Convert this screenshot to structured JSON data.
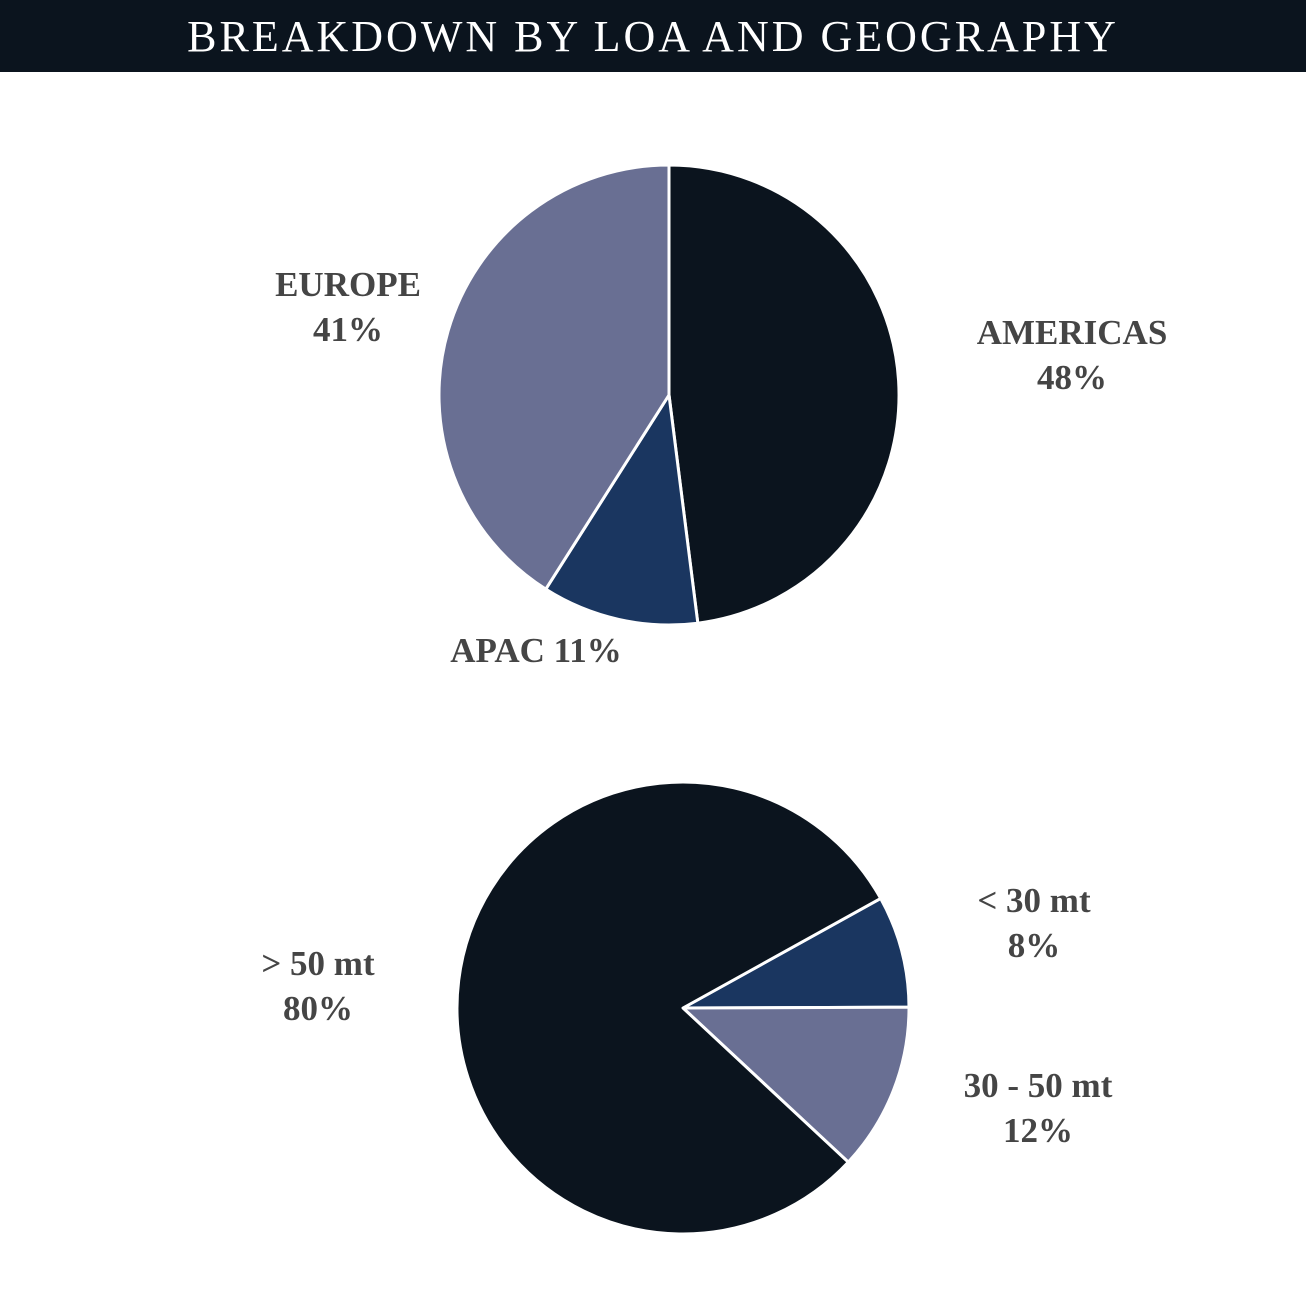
{
  "header": {
    "title": "BREAKDOWN BY LOA AND GEOGRAPHY"
  },
  "colors": {
    "header_bg": "#0b141e",
    "darkest": "#0b141e",
    "navy": "#1a3660",
    "slate": "#696f93",
    "label": "#454545"
  },
  "chart_data": [
    {
      "type": "pie",
      "title": "",
      "slices": [
        {
          "label": "AMERICAS",
          "value": 48,
          "value_label": "48%",
          "color": "#0b141e"
        },
        {
          "label": "APAC",
          "value": 11,
          "value_label": "11%",
          "color": "#1a3660"
        },
        {
          "label": "EUROPE",
          "value": 41,
          "value_label": "41%",
          "color": "#696f93"
        }
      ]
    },
    {
      "type": "pie",
      "title": "",
      "slices": [
        {
          "label": "< 30 mt",
          "value": 8,
          "value_label": "8%",
          "color": "#1a3660"
        },
        {
          "label": "30 - 50 mt",
          "value": 12,
          "value_label": "12%",
          "color": "#696f93"
        },
        {
          "label": "> 50 mt",
          "value": 80,
          "value_label": "80%",
          "color": "#0b141e"
        }
      ]
    }
  ]
}
